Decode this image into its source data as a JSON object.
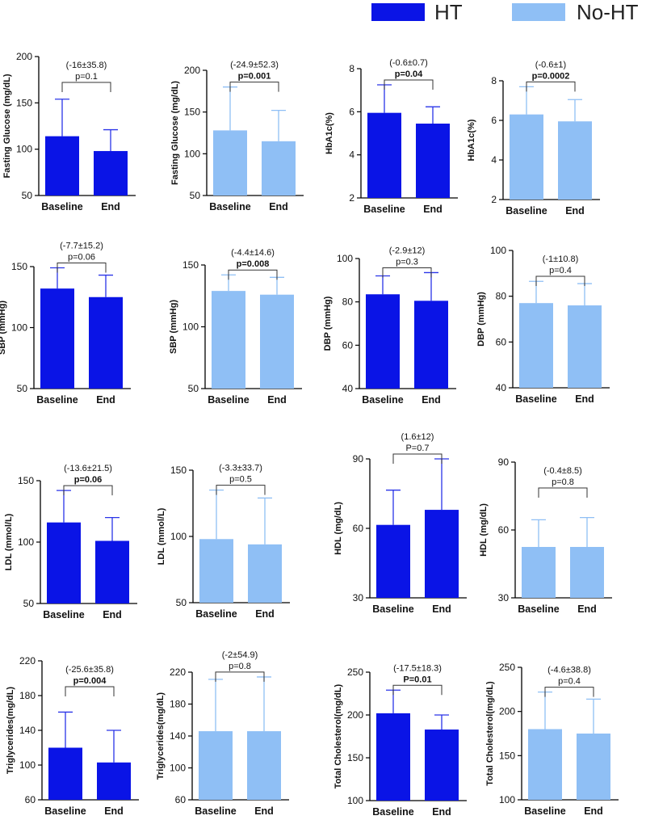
{
  "colors": {
    "ht": "#0a14e6",
    "noht": "#8fbff5",
    "axis": "#000000",
    "text": "#111111"
  },
  "legend": {
    "ht_label": "HT",
    "noht_label": "No-HT"
  },
  "chart_data": [
    {
      "type": "bar",
      "group": "HT",
      "categories": [
        "Baseline",
        "End"
      ],
      "values": [
        114,
        98
      ],
      "errors": [
        40,
        23
      ],
      "ylabel": "Fasting Glucose (mg/dL)",
      "ylim": [
        50,
        200
      ],
      "yticks": [
        50,
        100,
        150,
        200
      ],
      "annotation": "(-16±35.8)",
      "pvalue": "p=0.1",
      "p_bold": false
    },
    {
      "type": "bar",
      "group": "No-HT",
      "categories": [
        "Baseline",
        "End"
      ],
      "values": [
        128,
        115
      ],
      "errors": [
        52,
        37
      ],
      "ylabel": "Fasting Glucose (mg/dL)",
      "ylim": [
        50,
        200
      ],
      "yticks": [
        50,
        100,
        150,
        200
      ],
      "annotation": "(-24.9±52.3)",
      "pvalue": "p=0.001",
      "p_bold": true
    },
    {
      "type": "bar",
      "group": "HT",
      "categories": [
        "Baseline",
        "End"
      ],
      "values": [
        5.95,
        5.45
      ],
      "errors": [
        1.3,
        0.78
      ],
      "ylabel": "HbA1c(%)",
      "ylim": [
        2,
        8
      ],
      "yticks": [
        2,
        4,
        6,
        8
      ],
      "annotation": "(-0.6±0.7)",
      "pvalue": "p=0.04",
      "p_bold": true
    },
    {
      "type": "bar",
      "group": "No-HT",
      "categories": [
        "Baseline",
        "End"
      ],
      "values": [
        6.3,
        5.95
      ],
      "errors": [
        1.4,
        1.1
      ],
      "ylabel": "HbA1c(%)",
      "ylim": [
        2,
        8
      ],
      "yticks": [
        2,
        4,
        6,
        8
      ],
      "annotation": "(-0.6±1)",
      "pvalue": "p=0.0002",
      "p_bold": true
    },
    {
      "type": "bar",
      "group": "HT",
      "categories": [
        "Baseline",
        "End"
      ],
      "values": [
        132,
        125
      ],
      "errors": [
        17,
        18
      ],
      "ylabel": "SBP (mmHg)",
      "ylim": [
        50,
        150
      ],
      "yticks": [
        50,
        100,
        150
      ],
      "annotation": "(-7.7±15.2)",
      "pvalue": "p=0.06",
      "p_bold": false
    },
    {
      "type": "bar",
      "group": "No-HT",
      "categories": [
        "Baseline",
        "End"
      ],
      "values": [
        129,
        126
      ],
      "errors": [
        13,
        14
      ],
      "ylabel": "SBP (mmHg)",
      "ylim": [
        50,
        150
      ],
      "yticks": [
        50,
        100,
        150
      ],
      "annotation": "(-4.4±14.6)",
      "pvalue": "p=0.008",
      "p_bold": true
    },
    {
      "type": "bar",
      "group": "HT",
      "categories": [
        "Baseline",
        "End"
      ],
      "values": [
        83.5,
        80.5
      ],
      "errors": [
        8.5,
        13
      ],
      "ylabel": "DBP (mmHg)",
      "ylim": [
        40,
        100
      ],
      "yticks": [
        40,
        60,
        80,
        100
      ],
      "annotation": "(-2.9±12)",
      "pvalue": "p=0.3",
      "p_bold": false
    },
    {
      "type": "bar",
      "group": "No-HT",
      "categories": [
        "Baseline",
        "End"
      ],
      "values": [
        77,
        76
      ],
      "errors": [
        9.5,
        9.5
      ],
      "ylabel": "DBP (mmHg)",
      "ylim": [
        40,
        100
      ],
      "yticks": [
        40,
        60,
        80,
        100
      ],
      "annotation": "(-1±10.8)",
      "pvalue": "p=0.4",
      "p_bold": false
    },
    {
      "type": "bar",
      "group": "HT",
      "categories": [
        "Baseline",
        "End"
      ],
      "values": [
        116,
        101
      ],
      "errors": [
        26,
        19
      ],
      "ylabel": "LDL (mmol/L)",
      "ylim": [
        50,
        150
      ],
      "yticks": [
        50,
        100,
        150
      ],
      "annotation": "(-13.6±21.5)",
      "pvalue": "p=0.06",
      "p_bold": true
    },
    {
      "type": "bar",
      "group": "No-HT",
      "categories": [
        "Baseline",
        "End"
      ],
      "values": [
        98,
        94
      ],
      "errors": [
        37,
        35
      ],
      "ylabel": "LDL (mmol/L)",
      "ylim": [
        50,
        150
      ],
      "yticks": [
        50,
        100,
        150
      ],
      "annotation": "(-3.3±33.7)",
      "pvalue": "p=0.5",
      "p_bold": false
    },
    {
      "type": "bar",
      "group": "HT",
      "categories": [
        "Baseline",
        "End"
      ],
      "values": [
        61.5,
        68
      ],
      "errors": [
        15,
        22
      ],
      "ylabel": "HDL (mg/dL)",
      "ylim": [
        30,
        90
      ],
      "yticks": [
        30,
        60,
        90
      ],
      "annotation": "(1.6±12)",
      "pvalue": "P=0.7",
      "p_bold": false
    },
    {
      "type": "bar",
      "group": "No-HT",
      "categories": [
        "Baseline",
        "End"
      ],
      "values": [
        52.5,
        52.5
      ],
      "errors": [
        12,
        13
      ],
      "ylabel": "HDL (mg/dL)",
      "ylim": [
        30,
        90
      ],
      "yticks": [
        30,
        60,
        90
      ],
      "annotation": "(-0.4±8.5)",
      "pvalue": "p=0.8",
      "p_bold": false
    },
    {
      "type": "bar",
      "group": "HT",
      "categories": [
        "Baseline",
        "End"
      ],
      "values": [
        120,
        103
      ],
      "errors": [
        41,
        37
      ],
      "ylabel": "Triglycerides(mg/dL)",
      "ylim": [
        60,
        220
      ],
      "yticks": [
        60,
        100,
        140,
        180,
        220
      ],
      "annotation": "(-25.6±35.8)",
      "pvalue": "p=0.004",
      "p_bold": true
    },
    {
      "type": "bar",
      "group": "No-HT",
      "categories": [
        "Baseline",
        "End"
      ],
      "values": [
        146,
        146
      ],
      "errors": [
        65,
        68
      ],
      "ylabel": "Triglycerides(mg/dL)",
      "ylim": [
        60,
        220
      ],
      "yticks": [
        60,
        100,
        140,
        180,
        220
      ],
      "annotation": "(-2±54.9)",
      "pvalue": "p=0.8",
      "p_bold": false
    },
    {
      "type": "bar",
      "group": "HT",
      "categories": [
        "Baseline",
        "End"
      ],
      "values": [
        202,
        183
      ],
      "errors": [
        27,
        17
      ],
      "ylabel": "Total Cholesterol(mg/dL)",
      "ylim": [
        100,
        250
      ],
      "yticks": [
        100,
        150,
        200,
        250
      ],
      "annotation": "(-17.5±18.3)",
      "pvalue": "P=0.01",
      "p_bold": true
    },
    {
      "type": "bar",
      "group": "No-HT",
      "categories": [
        "Baseline",
        "End"
      ],
      "values": [
        180,
        175
      ],
      "errors": [
        42,
        39
      ],
      "ylabel": "Total Cholesterol(mg/dL)",
      "ylim": [
        100,
        250
      ],
      "yticks": [
        100,
        150,
        200,
        250
      ],
      "annotation": "(-4.6±38.8)",
      "pvalue": "p=0.4",
      "p_bold": false
    }
  ]
}
